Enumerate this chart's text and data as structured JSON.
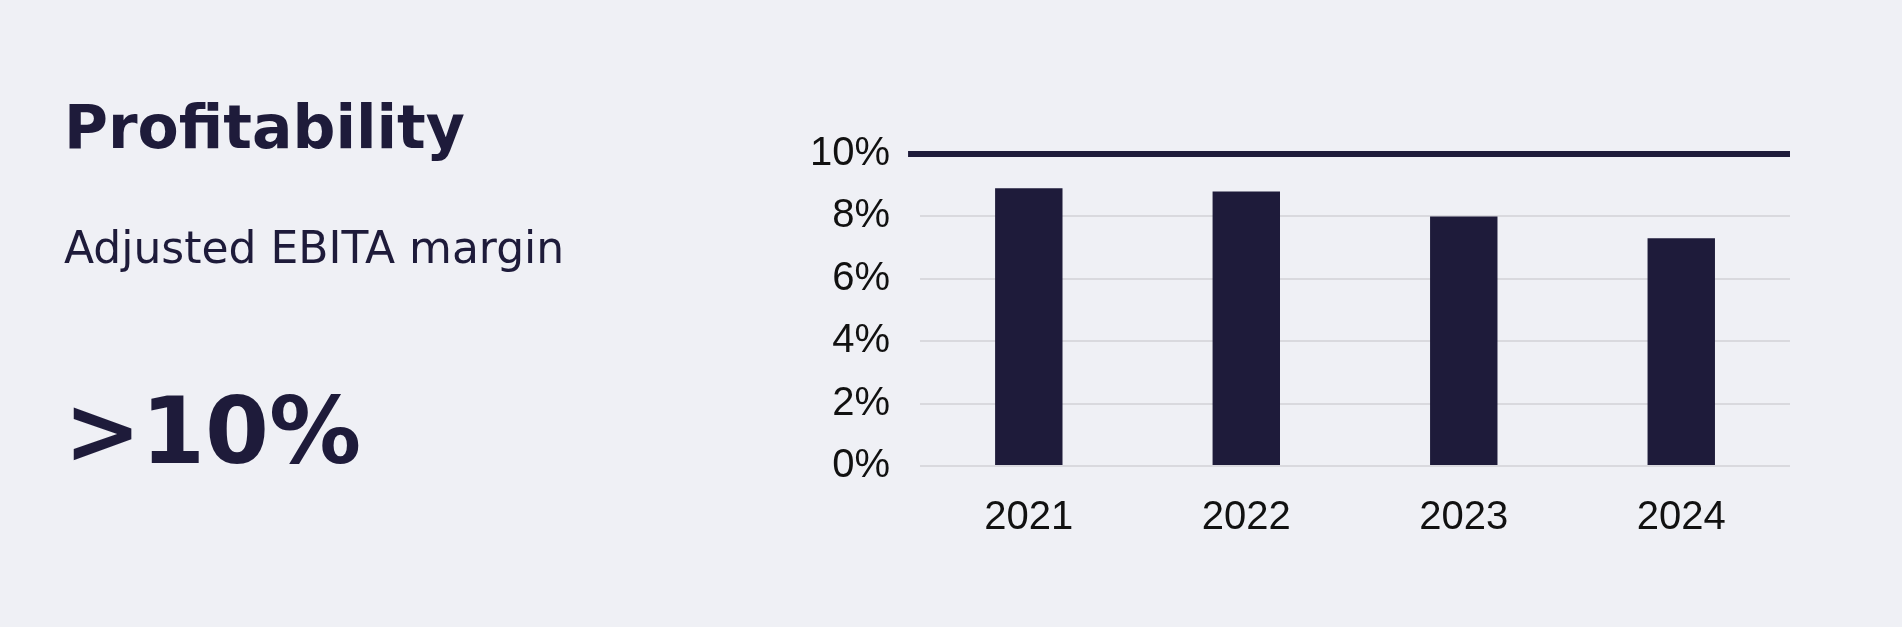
{
  "chart_data": {
    "type": "bar",
    "title": "Profitability",
    "subtitle": "Adjusted EBITA margin",
    "annotations": [
      ">10%"
    ],
    "categories": [
      "2021",
      "2022",
      "2023",
      "2024"
    ],
    "values": [
      8.9,
      8.8,
      8.0,
      7.3
    ],
    "color": "#1e1b3a",
    "ylim": [
      0,
      10
    ],
    "yticks": [
      {
        "value": 0,
        "label": "0%"
      },
      {
        "value": 2,
        "label": "2%"
      },
      {
        "value": 4,
        "label": "4%"
      },
      {
        "value": 6,
        "label": "6%"
      },
      {
        "value": 8,
        "label": "8%"
      },
      {
        "value": 10,
        "label": "10%"
      }
    ],
    "ref_lines": [
      {
        "axis": "y",
        "value": 10,
        "color": "#1e1b3a"
      }
    ],
    "grid": "y",
    "legend": false
  }
}
